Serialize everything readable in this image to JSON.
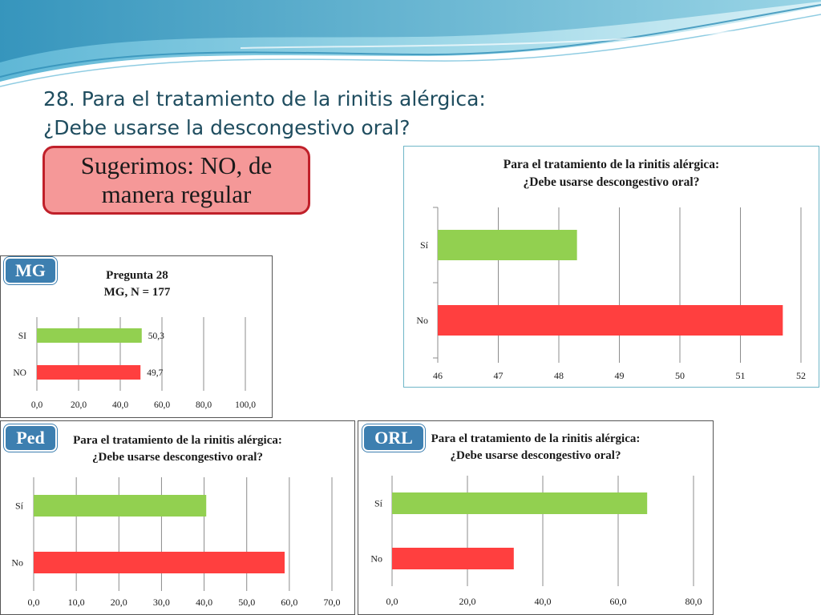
{
  "slide": {
    "title_line1": "28. Para el tratamiento de la rinitis alérgica:",
    "title_line2": "¿Debe usarse la descongestivo oral?",
    "recommendation_line1": "Sugerimos: NO, de",
    "recommendation_line2": "manera regular",
    "colors": {
      "si": "#92d050",
      "no": "#ff3f3f",
      "tag": "#3d7fb0",
      "title": "#1f4d5f"
    }
  },
  "tags": {
    "mg": "MG",
    "ped": "Ped",
    "orl": "ORL"
  },
  "chart_data": [
    {
      "id": "main",
      "type": "bar",
      "orientation": "horizontal",
      "title_line1": "Para el tratamiento de la rinitis alérgica:",
      "title_line2": "¿Debe usarse descongestivo oral?",
      "categories": [
        "Sí",
        "No"
      ],
      "values": [
        48.3,
        51.7
      ],
      "colors": [
        "#92d050",
        "#ff3f3f"
      ],
      "xlim": [
        46,
        52
      ],
      "ticks": [
        "46",
        "47",
        "48",
        "49",
        "50",
        "51",
        "52"
      ],
      "grid": true
    },
    {
      "id": "mg",
      "type": "bar",
      "orientation": "horizontal",
      "title_line1": "Pregunta 28",
      "title_line2": "MG, N = 177",
      "categories": [
        "SI",
        "NO"
      ],
      "values": [
        50.3,
        49.7
      ],
      "data_labels": [
        "50,3",
        "49,7"
      ],
      "colors": [
        "#92d050",
        "#ff3f3f"
      ],
      "xlim": [
        0,
        100
      ],
      "ticks": [
        "0,0",
        "20,0",
        "40,0",
        "60,0",
        "80,0",
        "100,0"
      ],
      "grid": true
    },
    {
      "id": "ped",
      "type": "bar",
      "orientation": "horizontal",
      "title_line1": "Para el tratamiento de la rinitis alérgica:",
      "title_line2": "¿Debe usarse descongestivo oral?",
      "categories": [
        "Sí",
        "No"
      ],
      "values": [
        40.5,
        58.9
      ],
      "colors": [
        "#92d050",
        "#ff3f3f"
      ],
      "xlim": [
        0,
        70
      ],
      "ticks": [
        "0,0",
        "10,0",
        "20,0",
        "30,0",
        "40,0",
        "50,0",
        "60,0",
        "70,0"
      ],
      "grid": true
    },
    {
      "id": "orl",
      "type": "bar",
      "orientation": "horizontal",
      "title_line1": "Para el tratamiento de la rinitis alérgica:",
      "title_line2": "¿Debe usarse descongestivo oral?",
      "categories": [
        "Sí",
        "No"
      ],
      "values": [
        67.7,
        32.3
      ],
      "colors": [
        "#92d050",
        "#ff3f3f"
      ],
      "xlim": [
        0,
        80
      ],
      "ticks": [
        "0,0",
        "20,0",
        "40,0",
        "60,0",
        "80,0"
      ],
      "grid": true
    }
  ]
}
